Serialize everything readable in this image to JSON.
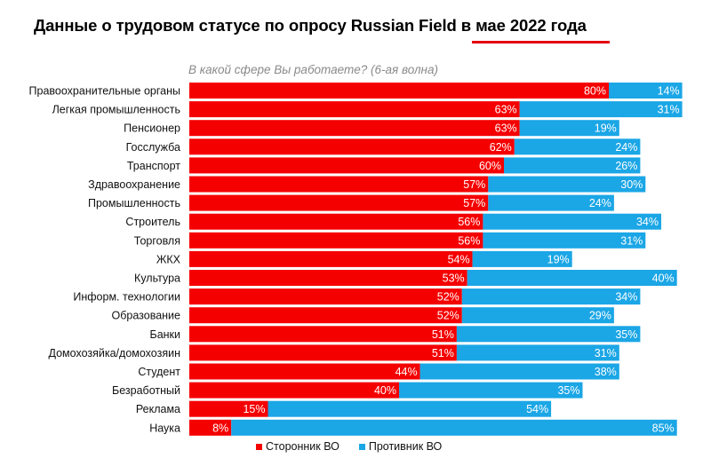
{
  "title": {
    "main": "Данные о трудовом статусе по опросу Russian Field ",
    "highlight": "в мае 2022 года"
  },
  "subtitle": "В какой сфере Вы работаете? (6-ая волна)",
  "colors": {
    "supporter": "#f50000",
    "opponent": "#1ba6e6",
    "underline": "#e3000f"
  },
  "legend": {
    "supporter": "Сторонник ВО",
    "opponent": "Противник ВО"
  },
  "chart_data": {
    "type": "bar",
    "orientation": "horizontal",
    "stacked": true,
    "categories": [
      "Правоохранительные органы",
      "Легкая промышленность",
      "Пенсионер",
      "Госслужба",
      "Транспорт",
      "Здравоохранение",
      "Промышленность",
      "Строитель",
      "Торговля",
      "ЖКХ",
      "Культура",
      "Информ. технологии",
      "Образование",
      "Банки",
      "Домохозяйка/домохозяин",
      "Студент",
      "Безработный",
      "Реклама",
      "Наука"
    ],
    "series": [
      {
        "name": "Сторонник ВО",
        "values": [
          80,
          63,
          63,
          62,
          60,
          57,
          57,
          56,
          56,
          54,
          53,
          52,
          52,
          51,
          51,
          44,
          40,
          15,
          8
        ]
      },
      {
        "name": "Противник ВО",
        "values": [
          14,
          31,
          19,
          24,
          26,
          30,
          24,
          34,
          31,
          19,
          40,
          34,
          29,
          35,
          31,
          38,
          35,
          54,
          85
        ]
      }
    ],
    "value_suffix": "%",
    "legend_position": "bottom",
    "grid": false
  }
}
